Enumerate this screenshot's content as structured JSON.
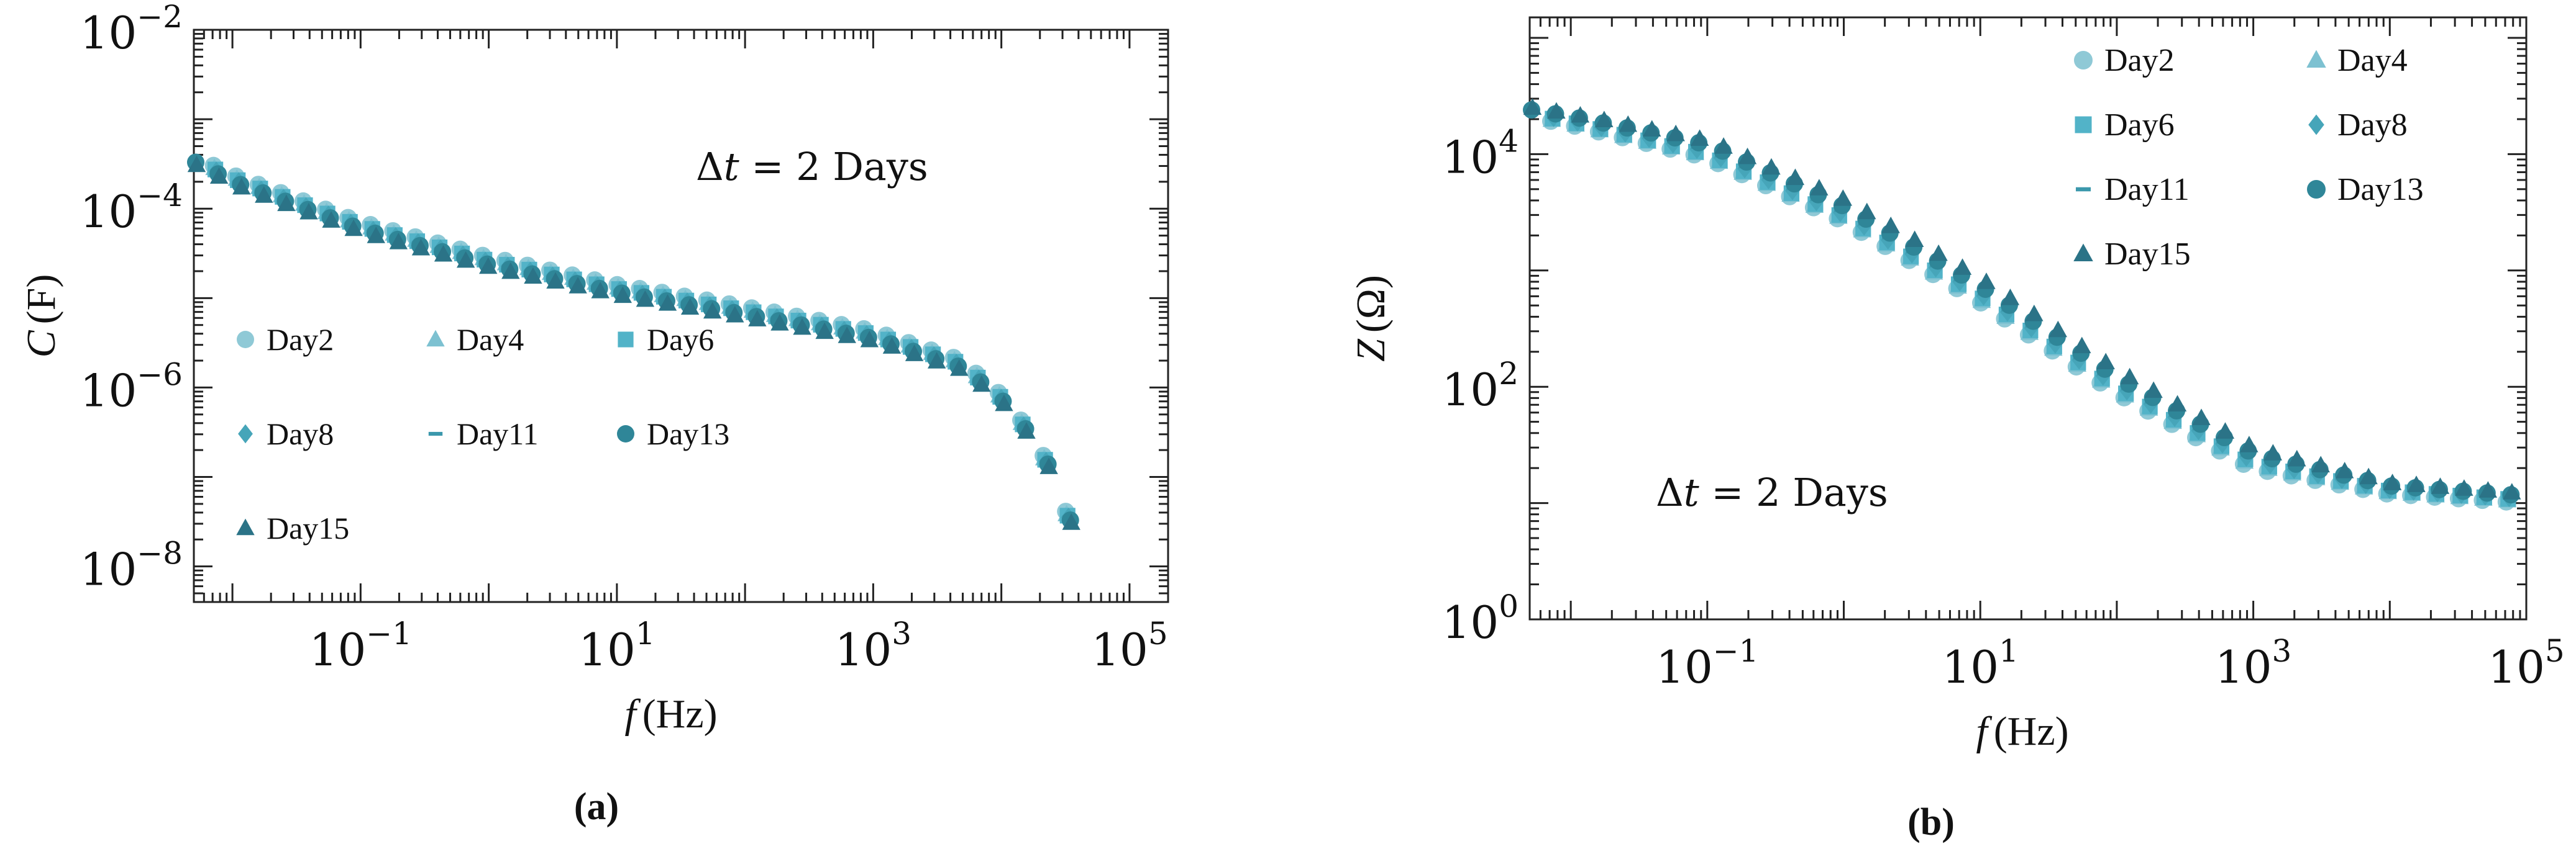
{
  "figure": {
    "labels": [
      "(a)",
      "(b)"
    ]
  },
  "colors": {
    "Day2": "#8fc9d6",
    "Day4": "#7dc1d1",
    "Day6": "#52b3c8",
    "Day8": "#46a5b9",
    "Day11": "#3b98ac",
    "Day13": "#2f8698",
    "Day15": "#2b7387"
  },
  "chart_data": [
    {
      "id": "a",
      "panel_label": "(a)",
      "type": "scatter",
      "scale": "log-log",
      "xlabel_var": "f",
      "xlabel_unit": "(Hz)",
      "ylabel_var": "C",
      "ylabel_unit": "(F)",
      "xlim": [
        0.005,
        200000
      ],
      "ylim": [
        4e-09,
        0.01
      ],
      "xticks": [
        {
          "value": 0.1,
          "base": "10",
          "exp": "−1"
        },
        {
          "value": 10,
          "base": "10",
          "exp": "1"
        },
        {
          "value": 1000,
          "base": "10",
          "exp": "3"
        },
        {
          "value": 100000,
          "base": "10",
          "exp": "5"
        }
      ],
      "yticks": [
        {
          "value": 1e-08,
          "base": "10",
          "exp": "−8"
        },
        {
          "value": 1e-06,
          "base": "10",
          "exp": "−6"
        },
        {
          "value": 0.0001,
          "base": "10",
          "exp": "−4"
        },
        {
          "value": 0.01,
          "base": "10",
          "exp": "−2"
        }
      ],
      "annotation": {
        "symbol": "Δ",
        "var": "t",
        "text": " = 2 Days"
      },
      "legend": {
        "placement": "lower-left",
        "columns": 3
      },
      "series": [
        {
          "name": "Day2",
          "marker": "circle",
          "x": [
            0.005,
            0.01,
            0.1,
            1,
            10,
            100,
            1000,
            5000,
            10000,
            20000,
            35000
          ],
          "y": [
            0.00041,
            0.000245,
            7.24e-05,
            2.93e-05,
            1.43e-05,
            8.11e-06,
            4.39e-06,
            2.05e-06,
            8.75e-07,
            2.57e-07,
            3.49e-08
          ]
        },
        {
          "name": "Day4",
          "marker": "triangle",
          "x": [
            0.005,
            0.01,
            0.1,
            1,
            10,
            100,
            1000,
            5000,
            10000,
            20000,
            35000
          ],
          "y": [
            0.000383,
            0.000229,
            6.72e-05,
            2.72e-05,
            1.33e-05,
            7.53e-06,
            4.08e-06,
            1.9e-06,
            8.12e-07,
            2.39e-07,
            3.24e-08
          ]
        },
        {
          "name": "Day6",
          "marker": "square",
          "x": [
            0.005,
            0.01,
            0.1,
            1,
            10,
            100,
            1000,
            5000,
            10000,
            20000,
            35000
          ],
          "y": [
            0.00037,
            0.000221,
            6.49e-05,
            2.63e-05,
            1.28e-05,
            7.27e-06,
            3.94e-06,
            1.84e-06,
            7.85e-07,
            2.31e-07,
            3.13e-08
          ]
        },
        {
          "name": "Day8",
          "marker": "diamond",
          "x": [
            0.005,
            0.01,
            0.1,
            1,
            10,
            100,
            1000,
            5000,
            10000,
            20000,
            35000
          ],
          "y": [
            0.000355,
            0.000212,
            6.24e-05,
            2.52e-05,
            1.23e-05,
            6.99e-06,
            3.78e-06,
            1.77e-06,
            7.54e-07,
            2.21e-07,
            3.01e-08
          ]
        },
        {
          "name": "Day11",
          "marker": "dash",
          "x": [
            0.005,
            0.01,
            0.1,
            1,
            10,
            100,
            1000,
            5000,
            10000,
            20000,
            35000
          ],
          "y": [
            0.000355,
            0.000212,
            6.24e-05,
            2.52e-05,
            1.23e-05,
            6.99e-06,
            3.78e-06,
            1.77e-06,
            7.54e-07,
            2.21e-07,
            3.01e-08
          ]
        },
        {
          "name": "Day13",
          "marker": "circle",
          "x": [
            0.005,
            0.01,
            0.1,
            1,
            10,
            100,
            1000,
            5000,
            10000,
            20000,
            35000
          ],
          "y": [
            0.00033,
            0.000197,
            5.8e-05,
            2.34e-05,
            1.15e-05,
            6.49e-06,
            3.51e-06,
            1.64e-06,
            7e-07,
            2.06e-07,
            2.79e-08
          ]
        },
        {
          "name": "Day15",
          "marker": "triangle",
          "x": [
            0.005,
            0.01,
            0.1,
            1,
            10,
            100,
            1000,
            5000,
            10000,
            20000,
            35000
          ],
          "y": [
            0.000307,
            0.000183,
            5.39e-05,
            2.18e-05,
            1.07e-05,
            6.04e-06,
            3.27e-06,
            1.53e-06,
            6.51e-07,
            1.91e-07,
            2.6e-08
          ]
        }
      ]
    },
    {
      "id": "b",
      "panel_label": "(b)",
      "type": "scatter",
      "scale": "log-log",
      "xlabel_var": "f",
      "xlabel_unit": "(Hz)",
      "ylabel_var": "Z",
      "ylabel_unit": "(Ω)",
      "xlim": [
        0.005,
        100000
      ],
      "ylim": [
        1,
        150000
      ],
      "xticks": [
        {
          "value": 0.1,
          "base": "10",
          "exp": "−1"
        },
        {
          "value": 10,
          "base": "10",
          "exp": "1"
        },
        {
          "value": 1000,
          "base": "10",
          "exp": "3"
        },
        {
          "value": 100000,
          "base": "10",
          "exp": "5"
        }
      ],
      "yticks": [
        {
          "value": 1,
          "base": "10",
          "exp": "0"
        },
        {
          "value": 100,
          "base": "10",
          "exp": "2"
        },
        {
          "value": 10000,
          "base": "10",
          "exp": "4"
        }
      ],
      "annotation": {
        "symbol": "Δ",
        "var": "t",
        "text": " = 2 Days"
      },
      "legend": {
        "placement": "top-right",
        "columns": 2
      },
      "series": [
        {
          "name": "Day2",
          "marker": "circle",
          "x": [
            0.005,
            0.01,
            0.1,
            1,
            10,
            100,
            1000,
            10000,
            100000
          ],
          "y": [
            21000,
            18000,
            9400,
            2700,
            550,
            90,
            20,
            12,
            10
          ]
        },
        {
          "name": "Day4",
          "marker": "triangle",
          "x": [
            0.005,
            0.01,
            0.1,
            1,
            10,
            100,
            1000,
            10000,
            100000
          ],
          "y": [
            21500,
            18500,
            9700,
            2800,
            570,
            94,
            21,
            12.4,
            10.3
          ]
        },
        {
          "name": "Day6",
          "marker": "square",
          "x": [
            0.005,
            0.01,
            0.1,
            1,
            10,
            100,
            1000,
            10000,
            100000
          ],
          "y": [
            22000,
            19000,
            10000,
            2900,
            600,
            98,
            22,
            12.8,
            10.6
          ]
        },
        {
          "name": "Day8",
          "marker": "diamond",
          "x": [
            0.005,
            0.01,
            0.1,
            1,
            10,
            100,
            1000,
            10000,
            100000
          ],
          "y": [
            22500,
            19500,
            10500,
            3050,
            630,
            103,
            23,
            13.1,
            10.9
          ]
        },
        {
          "name": "Day11",
          "marker": "dash",
          "x": [
            0.005,
            0.01,
            0.1,
            1,
            10,
            100,
            1000,
            10000,
            100000
          ],
          "y": [
            23000,
            20000,
            11000,
            3200,
            660,
            108,
            24,
            13.5,
            11.2
          ]
        },
        {
          "name": "Day13",
          "marker": "circle",
          "x": [
            0.005,
            0.01,
            0.1,
            1,
            10,
            100,
            1000,
            10000,
            100000
          ],
          "y": [
            24000,
            21000,
            12000,
            3500,
            720,
            118,
            26,
            14,
            11.5
          ]
        },
        {
          "name": "Day15",
          "marker": "triangle",
          "x": [
            0.005,
            0.01,
            0.1,
            1,
            10,
            100,
            1000,
            10000,
            100000
          ],
          "y": [
            25000,
            22000,
            13000,
            4000,
            830,
            135,
            29,
            14.8,
            12
          ]
        }
      ]
    }
  ]
}
